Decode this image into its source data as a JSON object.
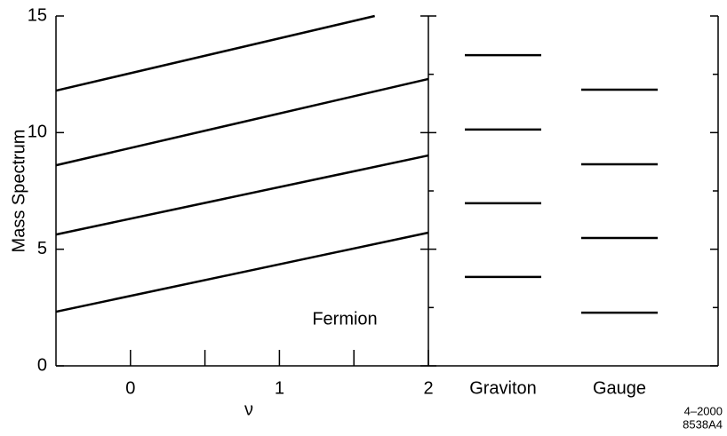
{
  "chart_data": {
    "type": "line",
    "ylabel": "Mass Spectrum",
    "xlabel": "ν",
    "xlim": [
      -0.5,
      2
    ],
    "xticks": [
      0,
      1,
      2
    ],
    "xminor_ticks": [
      0.5,
      1.5
    ],
    "ylim": [
      0,
      15
    ],
    "yticks": [
      0,
      5,
      10,
      15
    ],
    "yminor_ticks": [
      2.5,
      7.5,
      12.5
    ],
    "color": "#000000",
    "series": [
      {
        "x": [
          -0.5,
          2
        ],
        "values": [
          2.32,
          5.71
        ]
      },
      {
        "x": [
          -0.5,
          2
        ],
        "values": [
          5.63,
          9.02
        ]
      },
      {
        "x": [
          -0.5,
          2
        ],
        "values": [
          8.6,
          12.3
        ]
      },
      {
        "x": [
          -0.5,
          1.64
        ],
        "values": [
          11.8,
          15
        ]
      }
    ],
    "annotation": "Fermion",
    "levels": [
      {
        "name": "Graviton",
        "values": [
          13.32,
          10.13,
          6.97,
          3.81
        ]
      },
      {
        "name": "Gauge",
        "values": [
          11.84,
          8.64,
          5.48,
          2.28
        ]
      }
    ],
    "notes": [
      "4–2000",
      "8538A4"
    ]
  }
}
